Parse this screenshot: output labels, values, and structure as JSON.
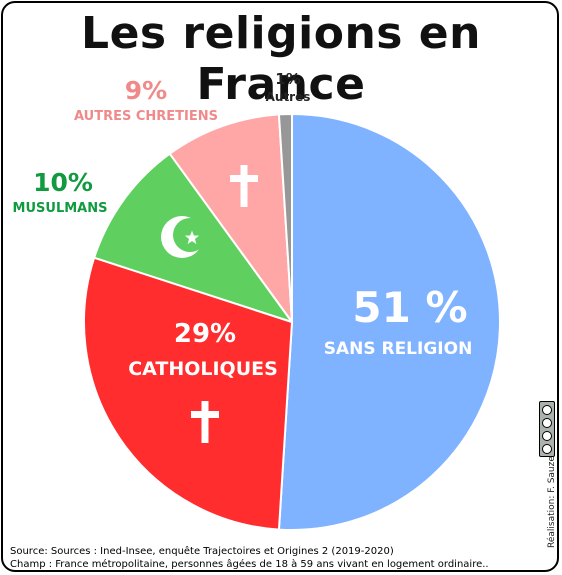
{
  "title": "Les religions en France",
  "chart_data": {
    "type": "pie",
    "title": "Les religions en France",
    "slices": [
      {
        "name": "SANS RELIGION",
        "value": 51,
        "label": "51 %",
        "color": "#7fb2ff",
        "icon": ""
      },
      {
        "name": "CATHOLIQUES",
        "value": 29,
        "label": "29%",
        "color": "#ff2d2d",
        "icon": "cross-icon"
      },
      {
        "name": "MUSULMANS",
        "value": 10,
        "label": "10%",
        "color": "#5fcf5f",
        "icon": "crescent-star-icon"
      },
      {
        "name": "AUTRES CHRETIENS",
        "value": 9,
        "label": "9%",
        "color": "#ffa7a7",
        "icon": "cross-icon"
      },
      {
        "name": "Autres",
        "value": 1,
        "label": "1%",
        "color": "#979797",
        "icon": ""
      }
    ],
    "label_colors": {
      "SANS RELIGION": "#ffffff",
      "CATHOLIQUES": "#ffffff",
      "MUSULMANS": "#119a40",
      "AUTRES CHRETIENS": "#f08a8a",
      "Autres": "#222222"
    }
  },
  "source": "Source: Sources : Ined-Insee, enquête Trajectoires et Origines 2 (2019-2020)",
  "scope": "Champ : France métropolitaine, personnes âgées de 18 à 59 ans vivant en logement ordinaire..",
  "credit": "Réalisation: F. Sauzeau",
  "license_badge": "cc-by-nc-sa"
}
